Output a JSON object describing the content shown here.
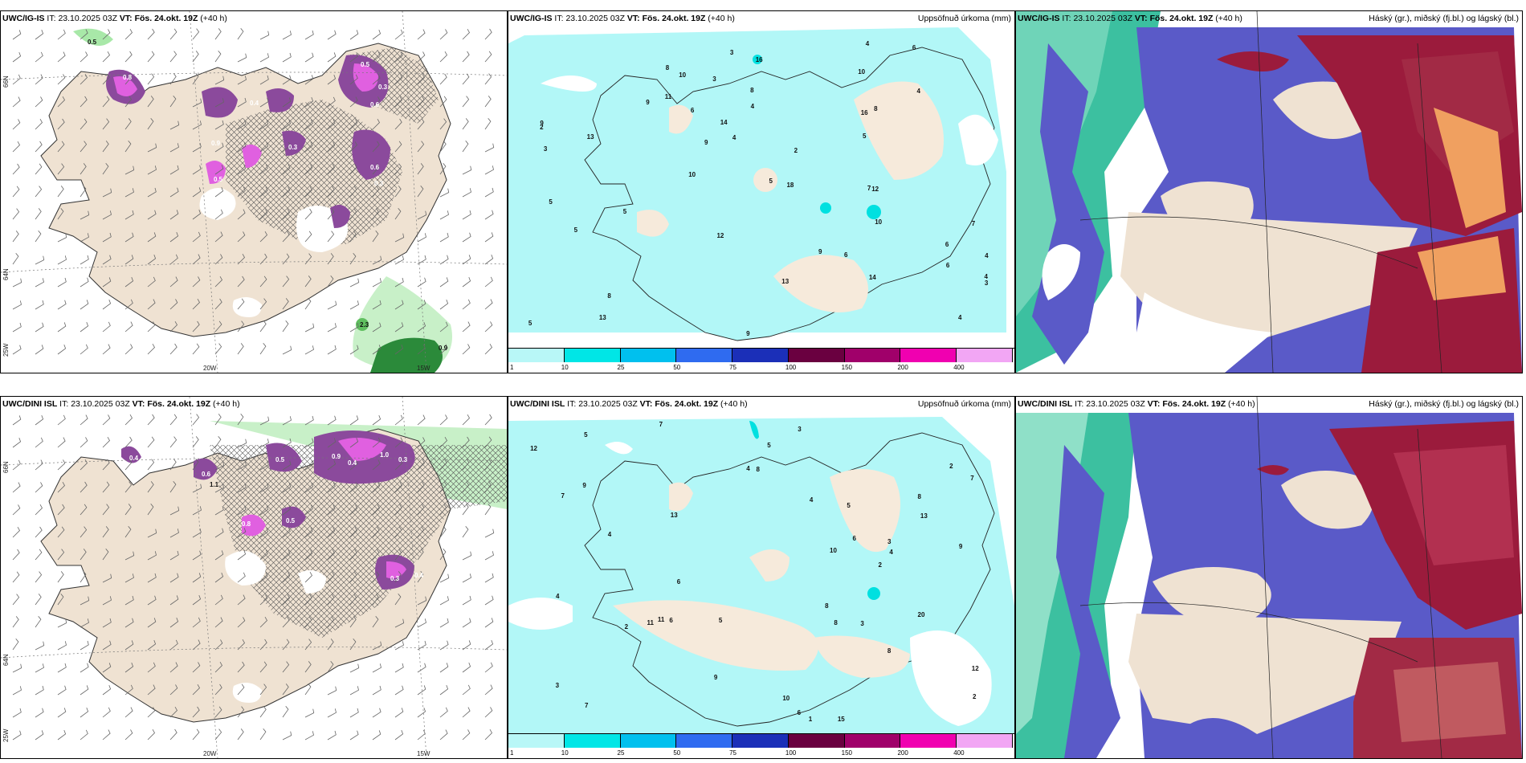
{
  "panels": [
    {
      "model": "UWC/IG-IS",
      "it_label": "IT:",
      "it": "23.10.2025 03Z",
      "vt_label": "VT:",
      "vt": "Fös. 24.okt. 19Z",
      "lead": "(+40 h)",
      "title": ""
    },
    {
      "model": "UWC/IG-IS",
      "it_label": "IT:",
      "it": "23.10.2025 03Z",
      "vt_label": "VT:",
      "vt": "Fös. 24.okt. 19Z",
      "lead": "(+40 h)",
      "title": "Uppsöfnuð úrkoma (mm)"
    },
    {
      "model": "UWC/IG-IS",
      "it_label": "IT:",
      "it": "23.10.2025 03Z",
      "vt_label": "VT:",
      "vt": "Fös. 24.okt. 19Z",
      "lead": "(+40 h)",
      "title": "Háský (gr.), miðský (fj.bl.) og lágský (bl.)"
    },
    {
      "model": "UWC/DINI ISL",
      "it_label": "IT:",
      "it": "23.10.2025 03Z",
      "vt_label": "VT:",
      "vt": "Fös. 24.okt. 19Z",
      "lead": "(+40 h)",
      "title": ""
    },
    {
      "model": "UWC/DINI ISL",
      "it_label": "IT:",
      "it": "23.10.2025 03Z",
      "vt_label": "VT:",
      "vt": "Fös. 24.okt. 19Z",
      "lead": "(+40 h)",
      "title": "Uppsöfnuð úrkoma (mm)"
    },
    {
      "model": "UWC/DINI ISL",
      "it_label": "IT:",
      "it": "23.10.2025 03Z",
      "vt_label": "VT:",
      "vt": "Fös. 24.okt. 19Z",
      "lead": "(+40 h)",
      "title": "Háský (gr.), miðský (fj.bl.) og lágský (bl.)"
    }
  ],
  "grid_labels": {
    "lat66": "66N",
    "lat64": "64N",
    "lon25": "25W",
    "lon20": "20W",
    "lon15": "15W"
  },
  "colorbar": {
    "ticks": [
      "1",
      "10",
      "25",
      "50",
      "75",
      "100",
      "150",
      "200",
      "400"
    ],
    "colors": [
      "#b8f7f7",
      "#00e6e6",
      "#00c0ee",
      "#2f6bf0",
      "#1b2fb8",
      "#6a0040",
      "#a0006a",
      "#f000b0",
      "#f2a6f4"
    ]
  },
  "colors": {
    "land": "#efe2d2",
    "sea_precip": "#b2f7f7",
    "precip_purple": "#8b4a9c",
    "precip_magenta": "#e060e0",
    "cloud_high": "#5a5ac8",
    "cloud_mid": "#9b1b3c",
    "cloud_low": "#3cc0a0"
  },
  "precip_values_top": [
    "9",
    "10",
    "4",
    "6",
    "7",
    "13",
    "10",
    "8",
    "5",
    "12",
    "14",
    "7",
    "9",
    "8",
    "6",
    "5",
    "4",
    "11",
    "4",
    "3",
    "6",
    "10",
    "18",
    "16",
    "5",
    "9",
    "12",
    "9",
    "2",
    "4",
    "13",
    "14",
    "13",
    "16",
    "4",
    "3",
    "5",
    "2",
    "3",
    "8",
    "6",
    "5",
    "10",
    "8",
    "9",
    "4",
    "3",
    "6",
    "5",
    "4"
  ],
  "precip_values_bottom": [
    "7",
    "2",
    "20",
    "8",
    "6",
    "12",
    "13",
    "9",
    "3",
    "5",
    "10",
    "8",
    "7",
    "4",
    "6",
    "11",
    "9",
    "8",
    "15",
    "12",
    "4",
    "13",
    "3",
    "5",
    "7",
    "2",
    "4",
    "8",
    "11",
    "10",
    "6",
    "5",
    "3",
    "2",
    "6",
    "1",
    "9",
    "4",
    "7",
    "3",
    "5",
    "2",
    "4",
    "8"
  ],
  "snow_values_top": [
    "0.5",
    "0.5",
    "0.3",
    "0.6",
    "0.4",
    "0.8",
    "0.6",
    "0.3",
    "0.5",
    "0.9",
    "0.3",
    "2.3",
    "0.9"
  ],
  "snow_values_bottom": [
    "0.9",
    "0.4",
    "1.0",
    "0.3",
    "0.5",
    "0.6",
    "0.4",
    "0.3",
    "0.8",
    "1.1",
    "0.5",
    "0.4"
  ]
}
